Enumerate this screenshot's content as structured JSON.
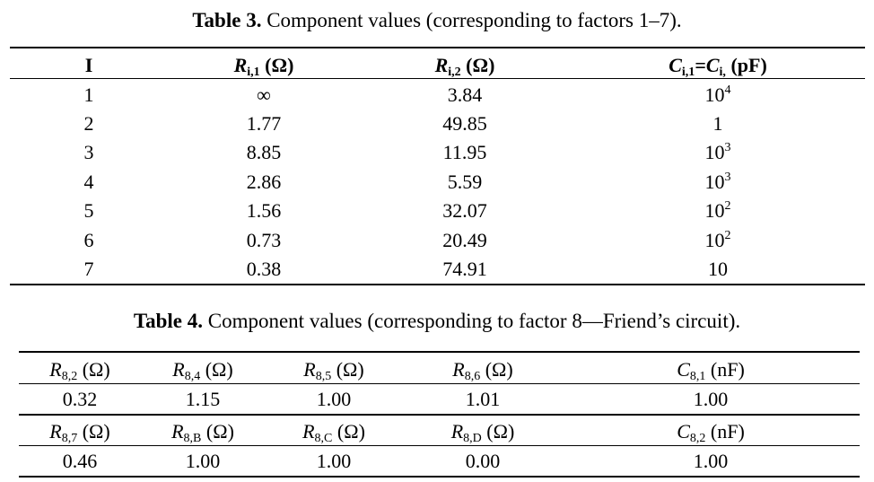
{
  "table3": {
    "caption_label": "Table 3.",
    "caption_text": " Component values (corresponding to factors 1–7).",
    "headers": {
      "i": "I",
      "r1_sym": "R",
      "r1_sub": "i,1",
      "r1_unit": " (Ω)",
      "r2_sym": "R",
      "r2_sub": "i,2",
      "r2_unit": " (Ω)",
      "c_sym1": "C",
      "c_sub1": "i,1",
      "c_eq": "=",
      "c_sym2": "C",
      "c_sub2": "i,",
      "c_unit": " (pF)"
    },
    "rows": [
      {
        "i": "1",
        "r1": "∞",
        "r2": "3.84",
        "c_base": "10",
        "c_exp": "4"
      },
      {
        "i": "2",
        "r1": "1.77",
        "r2": "49.85",
        "c_base": "1",
        "c_exp": ""
      },
      {
        "i": "3",
        "r1": "8.85",
        "r2": "11.95",
        "c_base": "10",
        "c_exp": "3"
      },
      {
        "i": "4",
        "r1": "2.86",
        "r2": "5.59",
        "c_base": "10",
        "c_exp": "3"
      },
      {
        "i": "5",
        "r1": "1.56",
        "r2": "32.07",
        "c_base": "10",
        "c_exp": "2"
      },
      {
        "i": "6",
        "r1": "0.73",
        "r2": "20.49",
        "c_base": "10",
        "c_exp": "2"
      },
      {
        "i": "7",
        "r1": "0.38",
        "r2": "74.91",
        "c_base": "10",
        "c_exp": ""
      }
    ]
  },
  "table4": {
    "caption_label": "Table 4.",
    "caption_text": " Component values (corresponding to factor 8—Friend’s circuit).",
    "header_row_1": [
      {
        "sym": "R",
        "sub": "8,2",
        "unit": " (Ω)"
      },
      {
        "sym": "R",
        "sub": "8,4",
        "unit": " (Ω)"
      },
      {
        "sym": "R",
        "sub": "8,5",
        "unit": " (Ω)"
      },
      {
        "sym": "R",
        "sub": "8,6",
        "unit": " (Ω)"
      },
      {
        "sym": "C",
        "sub": "8,1",
        "unit": " (nF)"
      }
    ],
    "values_row_1": [
      "0.32",
      "1.15",
      "1.00",
      "1.01",
      "1.00"
    ],
    "header_row_2": [
      {
        "sym": "R",
        "sub": "8,7",
        "unit": " (Ω)"
      },
      {
        "sym": "R",
        "sub": "8,B",
        "unit": " (Ω)"
      },
      {
        "sym": "R",
        "sub": "8,C",
        "unit": " (Ω)"
      },
      {
        "sym": "R",
        "sub": "8,D",
        "unit": " (Ω)"
      },
      {
        "sym": "C",
        "sub": "8,2",
        "unit": " (nF)"
      }
    ],
    "values_row_2": [
      "0.46",
      "1.00",
      "1.00",
      "0.00",
      "1.00"
    ]
  }
}
